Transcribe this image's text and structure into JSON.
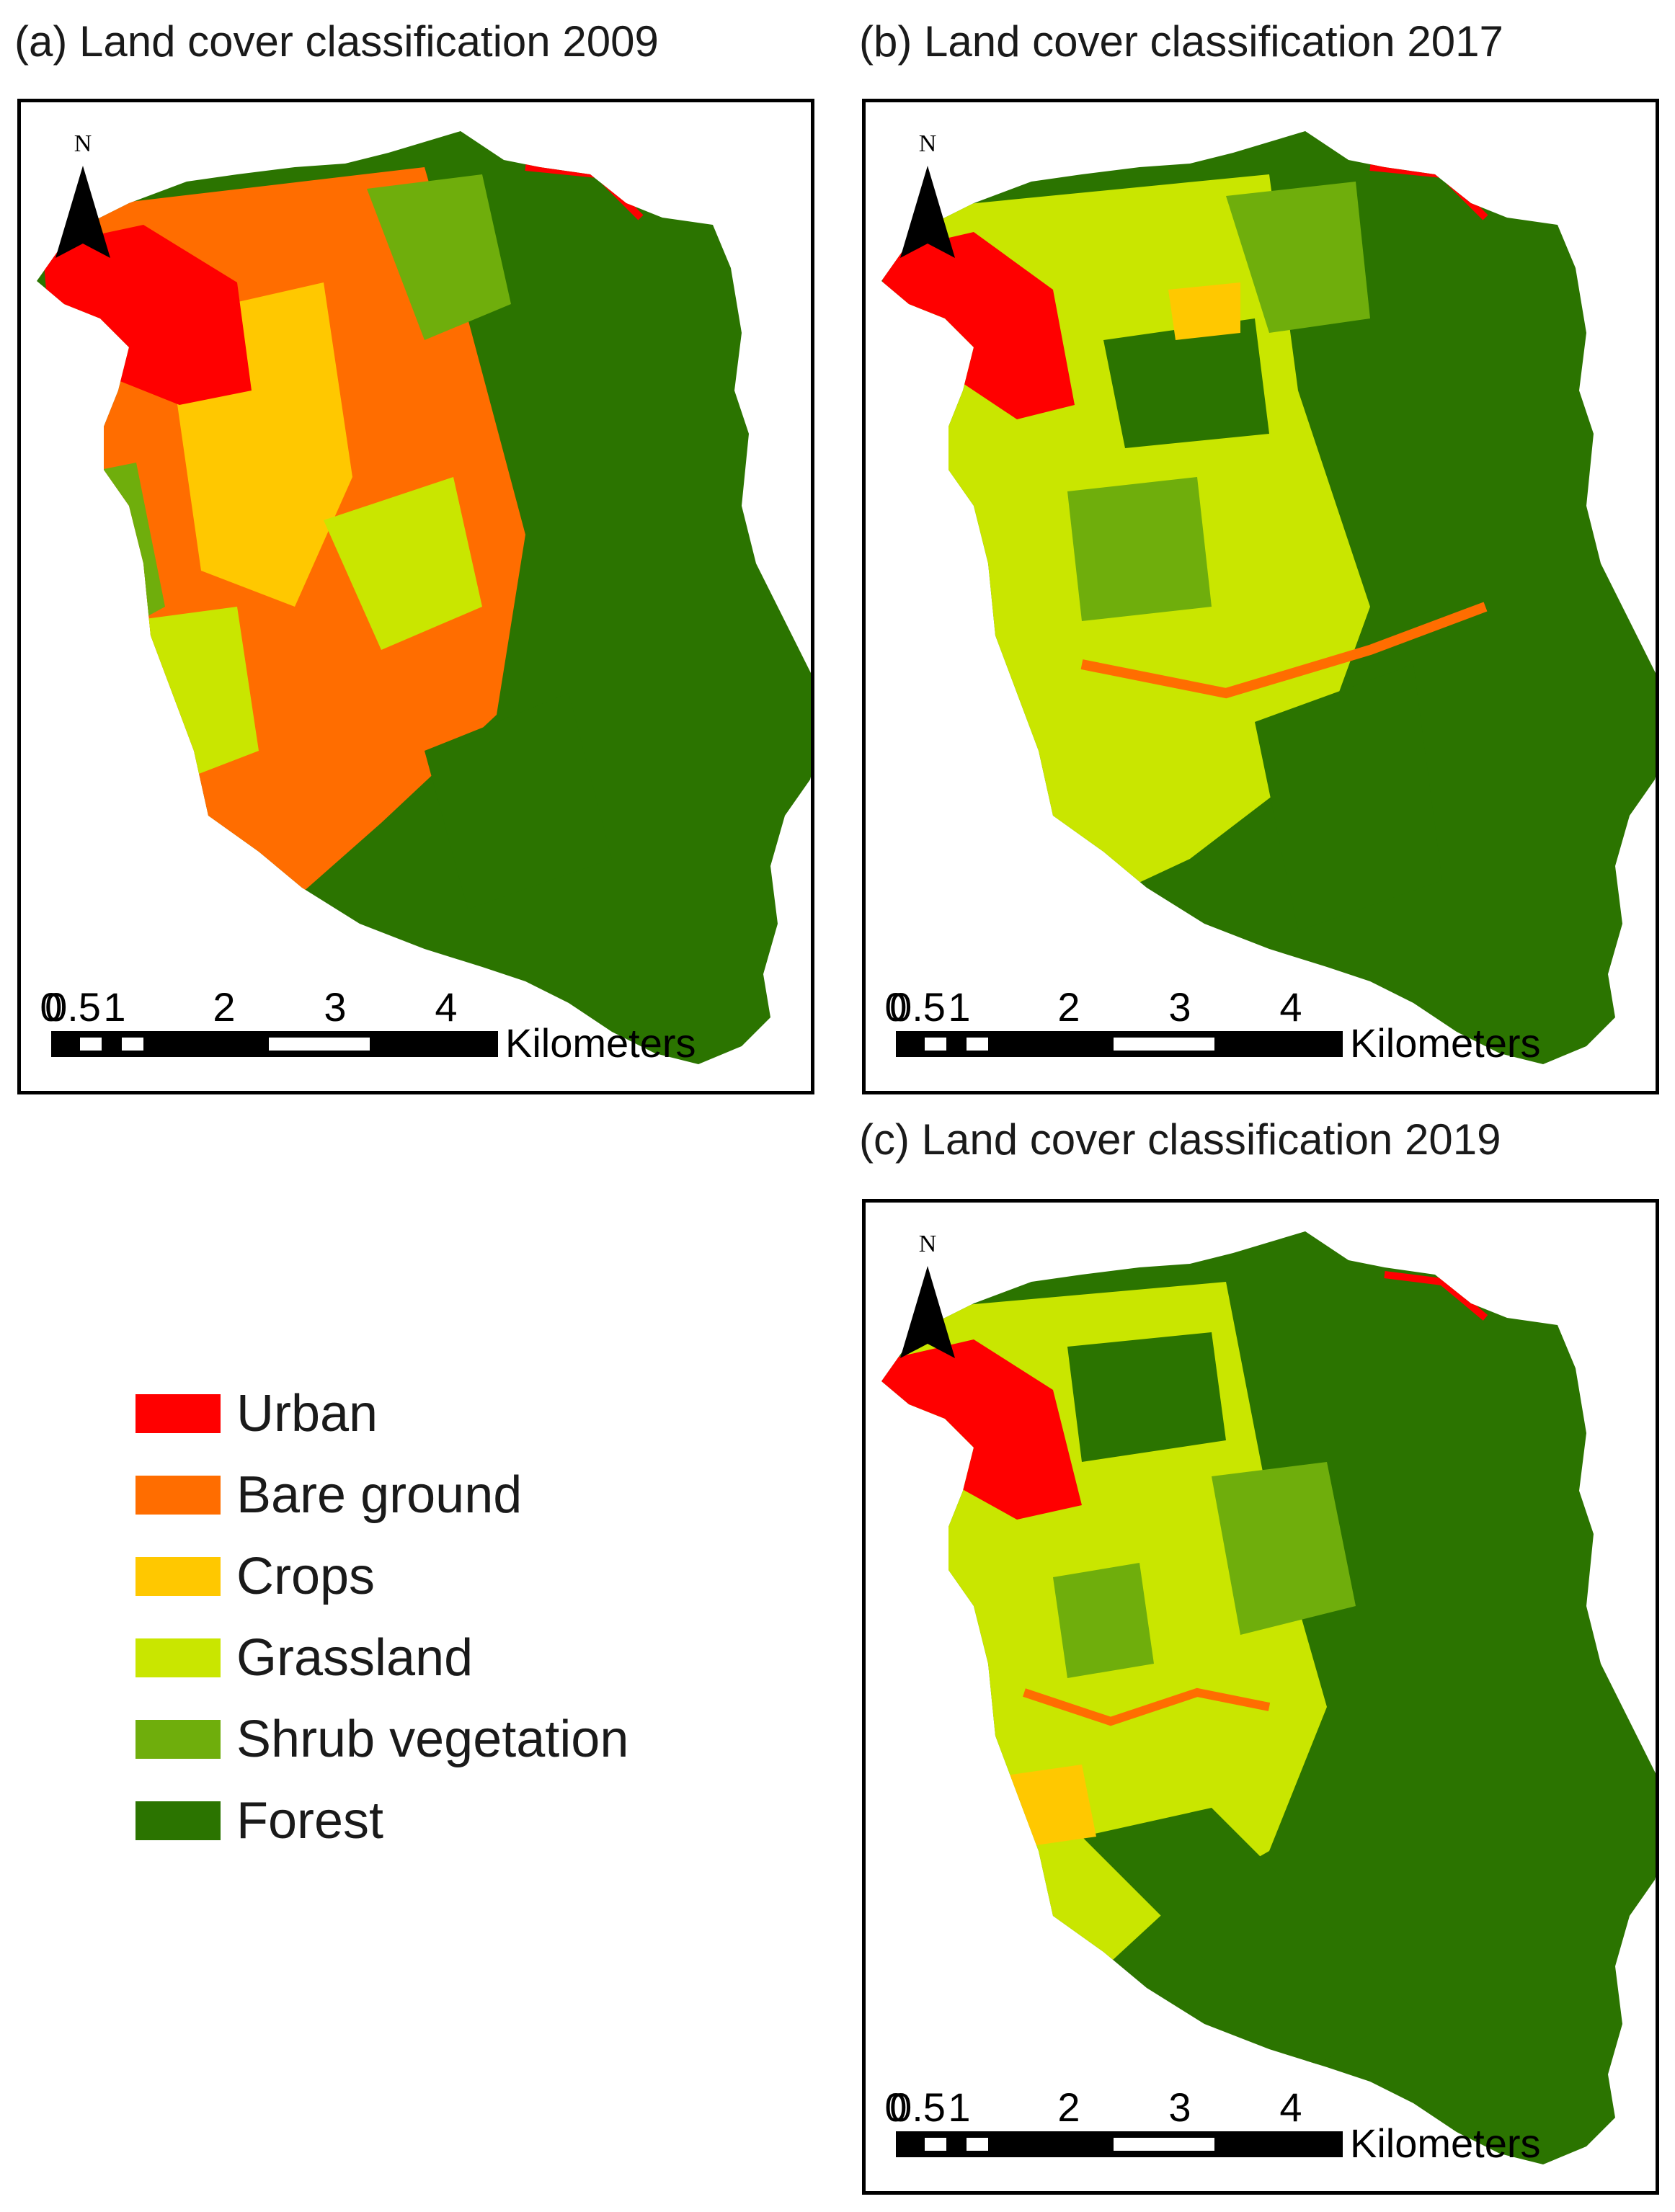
{
  "colors": {
    "urban": "#ff0000",
    "bare_ground": "#ff6d00",
    "crops": "#ffc800",
    "grassland": "#c9e600",
    "shrub": "#6fae0c",
    "forest": "#2b7400"
  },
  "panels": [
    {
      "id": "a",
      "title": "(a) Land cover classification 2009",
      "north_label": "N",
      "scale": {
        "tick_labels": [
          "0",
          "0.5",
          "1",
          "2",
          "3",
          "4"
        ],
        "unit": "Kilometers"
      },
      "dominant_classes": [
        "bare_ground",
        "crops",
        "forest",
        "urban"
      ]
    },
    {
      "id": "b",
      "title": "(b) Land cover classification 2017",
      "north_label": "N",
      "scale": {
        "tick_labels": [
          "0",
          "0.5",
          "1",
          "2",
          "3",
          "4"
        ],
        "unit": "Kilometers"
      },
      "dominant_classes": [
        "grassland",
        "forest",
        "urban"
      ]
    },
    {
      "id": "c",
      "title": "(c) Land cover classification 2019",
      "north_label": "N",
      "scale": {
        "tick_labels": [
          "0",
          "0.5",
          "1",
          "2",
          "3",
          "4"
        ],
        "unit": "Kilometers"
      },
      "dominant_classes": [
        "grassland",
        "shrub",
        "forest",
        "urban"
      ]
    }
  ],
  "legend": {
    "items": [
      {
        "label": "Urban",
        "color": "#ff0000"
      },
      {
        "label": "Bare ground",
        "color": "#ff6d00"
      },
      {
        "label": "Crops",
        "color": "#ffc800"
      },
      {
        "label": "Grassland",
        "color": "#c9e600"
      },
      {
        "label": "Shrub vegetation",
        "color": "#6fae0c"
      },
      {
        "label": "Forest",
        "color": "#2b7400"
      }
    ]
  }
}
